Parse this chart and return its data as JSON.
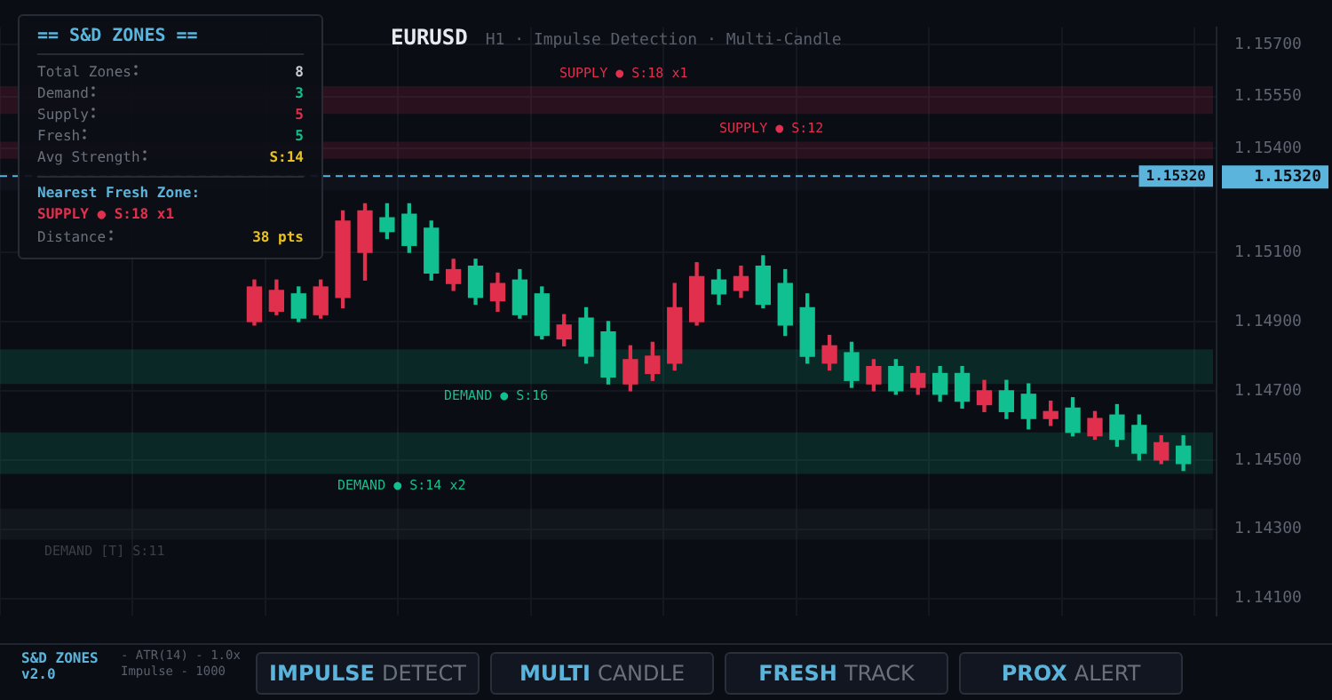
{
  "chart_data": [
    {
      "type": "candlestick",
      "title": "EURUSD",
      "subtitle": "H1 · Impulse Detection · Multi-Candle",
      "categories": [
        null,
        null,
        null,
        null,
        null,
        null,
        null,
        null,
        null,
        null,
        null,
        null,
        null,
        null,
        null,
        null,
        null,
        null,
        null,
        null,
        null,
        null,
        null,
        null,
        null,
        null,
        null,
        null,
        null,
        null,
        null,
        null,
        null,
        null,
        null,
        null,
        null,
        null,
        null,
        null,
        null,
        null,
        null,
        null,
        null,
        null,
        null,
        null,
        null,
        null,
        null,
        null,
        null,
        null,
        null
      ],
      "ohlc": [
        null,
        null,
        null,
        null,
        null,
        null,
        null,
        null,
        null,
        null,
        null,
        [
          1.15,
          1.1502,
          1.1489,
          1.149
        ],
        [
          1.1499,
          1.1502,
          1.1492,
          1.1493
        ],
        [
          1.1491,
          1.15,
          1.149,
          1.1498
        ],
        [
          1.15,
          1.1502,
          1.1491,
          1.1492
        ],
        [
          1.1519,
          1.1522,
          1.1494,
          1.1497
        ],
        [
          1.1522,
          1.1524,
          1.1502,
          1.151
        ],
        [
          1.1516,
          1.1524,
          1.1514,
          1.152
        ],
        [
          1.1512,
          1.1524,
          1.151,
          1.1521
        ],
        [
          1.1504,
          1.1519,
          1.1502,
          1.1517
        ],
        [
          1.1505,
          1.1508,
          1.1499,
          1.1501
        ],
        [
          1.1497,
          1.1508,
          1.1495,
          1.1506
        ],
        [
          1.1501,
          1.1504,
          1.1493,
          1.1496
        ],
        [
          1.1492,
          1.1505,
          1.1491,
          1.1502
        ],
        [
          1.1486,
          1.15,
          1.1485,
          1.1498
        ],
        [
          1.1489,
          1.1492,
          1.1483,
          1.1485
        ],
        [
          1.148,
          1.1494,
          1.1478,
          1.1491
        ],
        [
          1.1474,
          1.149,
          1.1472,
          1.1487
        ],
        [
          1.1479,
          1.1483,
          1.147,
          1.1472
        ],
        [
          1.148,
          1.1484,
          1.1473,
          1.1475
        ],
        [
          1.1494,
          1.1501,
          1.1476,
          1.1478
        ],
        [
          1.1503,
          1.1507,
          1.1489,
          1.149
        ],
        [
          1.1498,
          1.1505,
          1.1495,
          1.1502
        ],
        [
          1.1503,
          1.1506,
          1.1497,
          1.1499
        ],
        [
          1.1495,
          1.1509,
          1.1494,
          1.1506
        ],
        [
          1.1489,
          1.1505,
          1.1486,
          1.1501
        ],
        [
          1.148,
          1.1498,
          1.1478,
          1.1494
        ],
        [
          1.1483,
          1.1486,
          1.1476,
          1.1478
        ],
        [
          1.1473,
          1.1484,
          1.1471,
          1.1481
        ],
        [
          1.1477,
          1.1479,
          1.147,
          1.1472
        ],
        [
          1.147,
          1.1479,
          1.1469,
          1.1477
        ],
        [
          1.1475,
          1.1477,
          1.1469,
          1.1471
        ],
        [
          1.1469,
          1.1477,
          1.1467,
          1.1475
        ],
        [
          1.1467,
          1.1477,
          1.1465,
          1.1475
        ],
        [
          1.147,
          1.1473,
          1.1464,
          1.1466
        ],
        [
          1.1464,
          1.1473,
          1.1462,
          1.147
        ],
        [
          1.1462,
          1.1472,
          1.1459,
          1.1469
        ],
        [
          1.1464,
          1.1467,
          1.146,
          1.1462
        ],
        [
          1.1458,
          1.1468,
          1.1457,
          1.1465
        ],
        [
          1.1462,
          1.1464,
          1.1456,
          1.1457
        ],
        [
          1.1456,
          1.1466,
          1.1454,
          1.1463
        ],
        [
          1.1452,
          1.1463,
          1.145,
          1.146
        ],
        [
          1.1455,
          1.1457,
          1.1449,
          1.145
        ],
        [
          1.1449,
          1.1457,
          1.1447,
          1.1454
        ],
        null
      ],
      "colors": [
        null,
        null,
        null,
        null,
        null,
        null,
        null,
        null,
        null,
        null,
        null,
        "#e0304e",
        "#e0304e",
        "#10c090",
        "#e0304e",
        "#e0304e",
        "#e0304e",
        "#10c090",
        "#10c090",
        "#10c090",
        "#e0304e",
        "#10c090",
        "#e0304e",
        "#10c090",
        "#10c090",
        "#e0304e",
        "#10c090",
        "#10c090",
        "#e0304e",
        "#e0304e",
        "#e0304e",
        "#e0304e",
        "#10c090",
        "#e0304e",
        "#10c090",
        "#10c090",
        "#10c090",
        "#e0304e",
        "#10c090",
        "#e0304e",
        "#10c090",
        "#e0304e",
        "#10c090",
        "#10c090",
        "#e0304e",
        "#10c090",
        "#10c090",
        "#e0304e",
        "#10c090",
        "#e0304e",
        "#10c090",
        "#10c090",
        "#e0304e",
        "#10c090",
        null
      ],
      "ylim": [
        1.1405,
        1.1575
      ],
      "yticks": [
        {
          "value": 1.157,
          "label": "1.15700"
        },
        {
          "value": 1.1555,
          "label": "1.15550"
        },
        {
          "value": 1.154,
          "label": "1.15400"
        },
        {
          "value": 1.151,
          "label": "1.15100"
        },
        {
          "value": 1.149,
          "label": "1.14900"
        },
        {
          "value": 1.147,
          "label": "1.14700"
        },
        {
          "value": 1.145,
          "label": "1.14500"
        },
        {
          "value": 1.143,
          "label": "1.14300"
        },
        {
          "value": 1.141,
          "label": "1.14100"
        }
      ],
      "bands": [
        {
          "axis": "y",
          "from": 1.155,
          "to": 1.1558,
          "label": "SUPPLY ● S:18 x1",
          "color": "#e0304e"
        },
        {
          "axis": "y",
          "from": 1.1537,
          "to": 1.1542,
          "label": "SUPPLY ● S:12",
          "color": "#e0304e"
        },
        {
          "axis": "y",
          "from": 1.1528,
          "to": 1.1533,
          "label": null,
          "color": "#2c323c"
        },
        {
          "axis": "y",
          "from": 1.1472,
          "to": 1.1482,
          "label": "DEMAND ● S:16",
          "color": "#10c090"
        },
        {
          "axis": "y",
          "from": 1.1446,
          "to": 1.1458,
          "label": "DEMAND ● S:14 x2",
          "color": "#10c090"
        },
        {
          "axis": "y",
          "from": 1.1427,
          "to": 1.1436,
          "label": "DEMAND [T] S:11",
          "color": "#3a404a"
        }
      ],
      "ref_lines": [
        {
          "axis": "y",
          "value": 1.1532,
          "label": "1.15320",
          "color": "#5ab4dc",
          "line_style": "dashed"
        }
      ],
      "annotations": [
        "1.15320"
      ],
      "grid": true,
      "legend": false,
      "tick_labels": "y"
    },
    {
      "type": "other",
      "title": "== S&D ZONES ==",
      "categories": [
        "Total Zones",
        "Demand",
        "Supply",
        "Fresh",
        "Avg Strength",
        "Distance"
      ],
      "value_labels": [
        "8",
        "3",
        "5",
        "5",
        "S:14",
        "38 pts"
      ],
      "colors": [
        "#c8ccd4",
        "#10c090",
        "#e0304e",
        "#10c090",
        "#e8c020",
        "#e8c020"
      ],
      "annotations": [
        "Nearest Fresh Zone:",
        "SUPPLY ● S:18 x1"
      ]
    },
    {
      "type": "other",
      "title": "S&D ZONES v2.0",
      "annotations": [
        "- ATR(14) - 1.0x Impulse - 1000"
      ],
      "categories": [
        "IMPULSE DETECT",
        "MULTI CANDLE",
        "FRESH TRACK",
        "PROX ALERT"
      ]
    }
  ]
}
